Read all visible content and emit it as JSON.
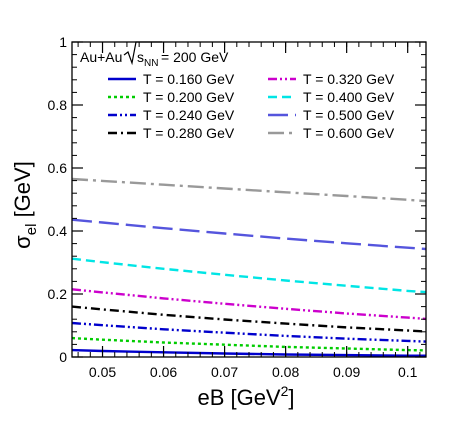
{
  "chart_data": {
    "type": "line",
    "title": "",
    "annotation": {
      "prefix": "Au+Au",
      "sqrt_s": "s",
      "sqrt_s_sub": "NN",
      "suffix": "= 200 GeV"
    },
    "xlabel": {
      "main": "eB [GeV",
      "sup": "2",
      "close": "]"
    },
    "ylabel": {
      "main": "σ",
      "sub": "el",
      "rest": " [GeV]"
    },
    "xlim": [
      0.045,
      0.103
    ],
    "ylim": [
      0,
      1
    ],
    "xticks": [
      {
        "v": 0.05,
        "label": "0.05"
      },
      {
        "v": 0.06,
        "label": "0.06"
      },
      {
        "v": 0.07,
        "label": "0.07"
      },
      {
        "v": 0.08,
        "label": "0.08"
      },
      {
        "v": 0.09,
        "label": "0.09"
      },
      {
        "v": 0.1,
        "label": "0.1"
      }
    ],
    "yticks": [
      {
        "v": 0,
        "label": "0"
      },
      {
        "v": 0.2,
        "label": "0.2"
      },
      {
        "v": 0.4,
        "label": "0.4"
      },
      {
        "v": 0.6,
        "label": "0.6"
      },
      {
        "v": 0.8,
        "label": "0.8"
      },
      {
        "v": 1,
        "label": "1"
      }
    ],
    "x_minor_step": 0.002,
    "y_minor_step": 0.04,
    "grid": false,
    "legend_position": "top",
    "legend_columns": 2,
    "x": [
      0.045,
      0.05,
      0.06,
      0.07,
      0.08,
      0.09,
      0.1,
      0.103
    ],
    "series": [
      {
        "name": "T = 0.160 GeV",
        "color": "#0000cc",
        "dash": "solid",
        "values": [
          0.022,
          0.019,
          0.015,
          0.011,
          0.008,
          0.006,
          0.004,
          0.004
        ]
      },
      {
        "name": "T = 0.200 GeV",
        "color": "#00cc00",
        "dash": "dot",
        "values": [
          0.06,
          0.055,
          0.046,
          0.039,
          0.032,
          0.027,
          0.022,
          0.021
        ]
      },
      {
        "name": "T = 0.240 GeV",
        "color": "#0000cc",
        "dash": "dashdotdot",
        "values": [
          0.108,
          0.101,
          0.088,
          0.077,
          0.067,
          0.058,
          0.051,
          0.049
        ]
      },
      {
        "name": "T = 0.280 GeV",
        "color": "#000000",
        "dash": "dashdot",
        "values": [
          0.16,
          0.151,
          0.134,
          0.119,
          0.106,
          0.094,
          0.084,
          0.081
        ]
      },
      {
        "name": "T = 0.320 GeV",
        "color": "#cc00cc",
        "dash": "dashdotdot",
        "values": [
          0.215,
          0.205,
          0.186,
          0.169,
          0.153,
          0.138,
          0.125,
          0.121
        ]
      },
      {
        "name": "T = 0.400 GeV",
        "color": "#00e5e5",
        "dash": "dash",
        "values": [
          0.312,
          0.301,
          0.28,
          0.261,
          0.243,
          0.226,
          0.21,
          0.206
        ]
      },
      {
        "name": "T = 0.500 GeV",
        "color": "#5555dd",
        "dash": "longdash",
        "values": [
          0.436,
          0.427,
          0.409,
          0.392,
          0.376,
          0.361,
          0.347,
          0.343
        ]
      },
      {
        "name": "T = 0.600 GeV",
        "color": "#999999",
        "dash": "dashdotlong",
        "values": [
          0.565,
          0.559,
          0.547,
          0.535,
          0.523,
          0.511,
          0.499,
          0.495
        ]
      }
    ]
  }
}
